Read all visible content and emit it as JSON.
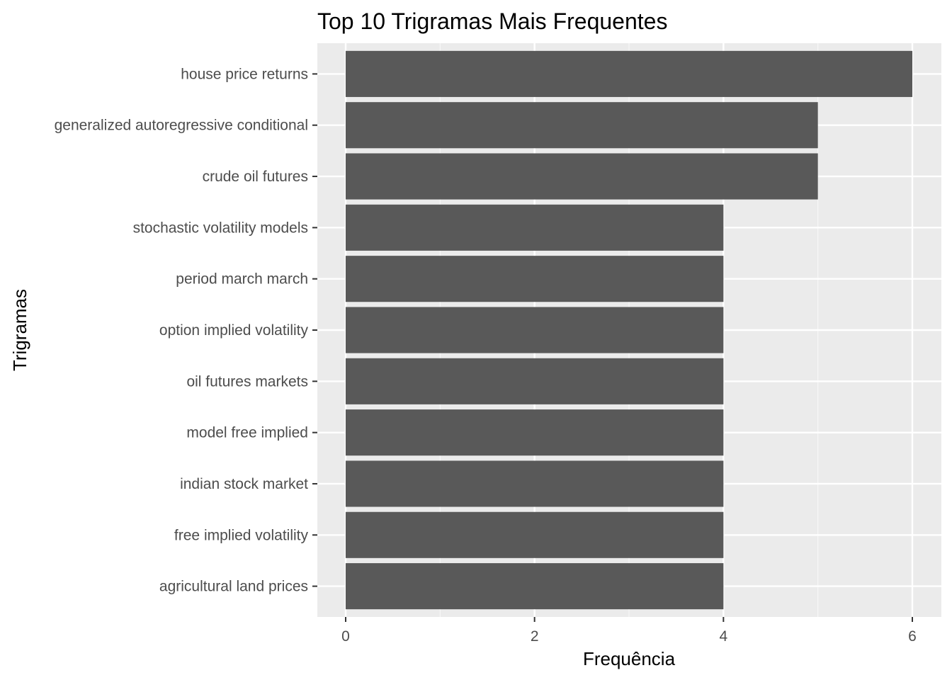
{
  "chart_data": {
    "type": "bar",
    "orientation": "horizontal",
    "title": "Top 10 Trigramas Mais Frequentes",
    "xlabel": "Frequência",
    "ylabel": "Trigramas",
    "categories": [
      "house price returns",
      "generalized autoregressive conditional",
      "crude oil futures",
      "stochastic volatility models",
      "period march march",
      "option implied volatility",
      "oil futures markets",
      "model free implied",
      "indian stock market",
      "free implied volatility",
      "agricultural land prices"
    ],
    "values": [
      6,
      5,
      5,
      4,
      4,
      4,
      4,
      4,
      4,
      4,
      4
    ],
    "xlim": [
      0,
      6
    ],
    "xticks": [
      0,
      2,
      4,
      6
    ],
    "grid": true,
    "legend": "none",
    "colors": {
      "bar": "#595959",
      "panel_background": "#ebebeb",
      "grid_major": "#ffffff",
      "grid_minor": "#f7f7f7",
      "tick_label": "#4d4d4d"
    }
  }
}
